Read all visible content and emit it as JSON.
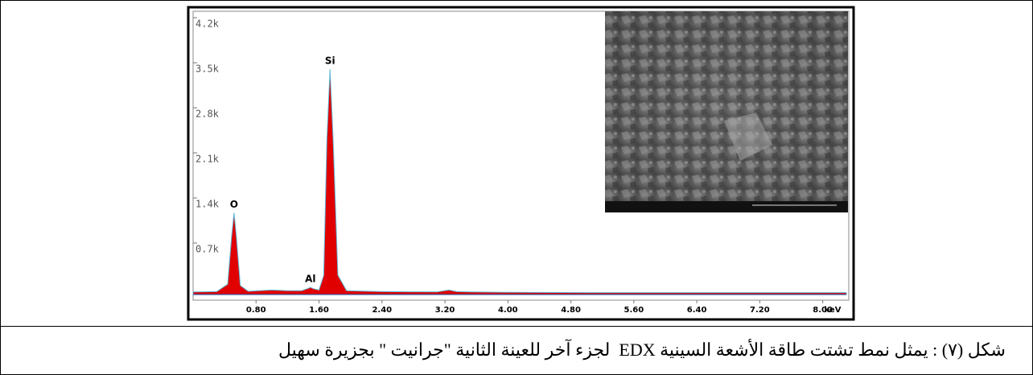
{
  "chart_data": {
    "type": "area",
    "color": "#e00000",
    "x": [
      0.0,
      0.3,
      0.44,
      0.49,
      0.52,
      0.55,
      0.6,
      0.7,
      1.0,
      1.2,
      1.38,
      1.45,
      1.49,
      1.53,
      1.6,
      1.66,
      1.7,
      1.74,
      1.78,
      1.84,
      1.95,
      2.4,
      3.1,
      3.25,
      3.35,
      3.5,
      4.0,
      5.0,
      8.3
    ],
    "values": [
      40,
      45,
      160,
      900,
      1270,
      900,
      140,
      50,
      70,
      60,
      60,
      90,
      110,
      90,
      70,
      300,
      2400,
      3500,
      2400,
      300,
      60,
      45,
      40,
      70,
      45,
      40,
      35,
      30,
      30
    ],
    "labels": [
      null,
      null,
      null,
      null,
      "O",
      null,
      null,
      null,
      null,
      null,
      null,
      null,
      "Al",
      null,
      null,
      null,
      null,
      "Si",
      null,
      null,
      null,
      null,
      null,
      null,
      null,
      null,
      null,
      null,
      null
    ],
    "xlim": [
      0,
      8.3
    ],
    "ylim": [
      0,
      4400
    ],
    "xticks": [
      {
        "value": 0.8,
        "label": "0.80"
      },
      {
        "value": 1.6,
        "label": "1.60"
      },
      {
        "value": 2.4,
        "label": "2.40"
      },
      {
        "value": 3.2,
        "label": "3.20"
      },
      {
        "value": 4.0,
        "label": "4.00"
      },
      {
        "value": 4.8,
        "label": "4.80"
      },
      {
        "value": 5.6,
        "label": "5.60"
      },
      {
        "value": 6.4,
        "label": "6.40"
      },
      {
        "value": 7.2,
        "label": "7.20"
      },
      {
        "value": 8.0,
        "label": "8.00"
      }
    ],
    "yticks": [
      {
        "value": 700,
        "label": "0.7k"
      },
      {
        "value": 1400,
        "label": "1.4k"
      },
      {
        "value": 2100,
        "label": "2.1k"
      },
      {
        "value": 2800,
        "label": "2.8k"
      },
      {
        "value": 3500,
        "label": "3.5k"
      },
      {
        "value": 4200,
        "label": "4.2k"
      }
    ],
    "x_label": "keV",
    "grid": false
  },
  "caption": "شكل (٧) : يمثل نمط تشتت طاقة الأشعة السينية EDX  لجزء آخر للعينة الثانية \"جرانيت \" بجزيرة سهيل"
}
